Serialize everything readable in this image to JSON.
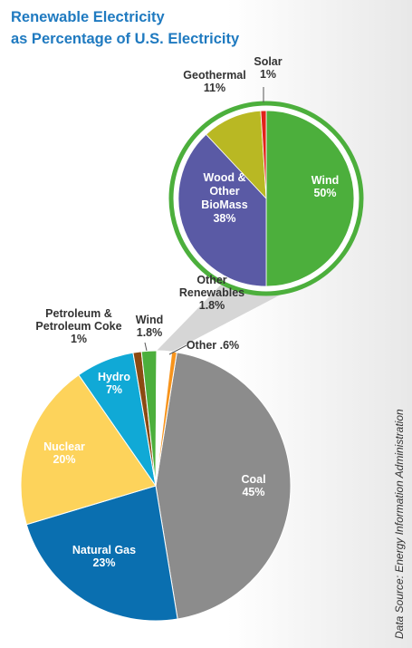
{
  "title_lines": [
    "Renewable Electricity",
    "as Percentage of U.S. Electricity"
  ],
  "source": "Data Source: Energy Information Administration",
  "colors": {
    "background": "#ffffff",
    "frame_gradient_end": "#e8e8e8",
    "title": "#1f7ac0",
    "zoom_wedge": "#d6d6d6",
    "inset_ring": "#4caf3c"
  },
  "chart_data": [
    {
      "type": "pie",
      "name": "main",
      "slices": [
        {
          "name": "Coal",
          "value": 45,
          "value_text": "45%",
          "color": "#8c8c8c",
          "label_lines": [
            "Coal",
            "45%"
          ],
          "label_color": "#ffffff"
        },
        {
          "name": "Natural Gas",
          "value": 23,
          "value_text": "23%",
          "color": "#0a6fb0",
          "label_lines": [
            "Natural Gas",
            "23%"
          ],
          "label_color": "#ffffff"
        },
        {
          "name": "Nuclear",
          "value": 20,
          "value_text": "20%",
          "color": "#fdd35b",
          "label_lines": [
            "Nuclear",
            "20%"
          ],
          "label_color": "#ffffff"
        },
        {
          "name": "Hydro",
          "value": 7,
          "value_text": "7%",
          "color": "#10a9d6",
          "label_lines": [
            "Hydro",
            "7%"
          ],
          "label_color": "#ffffff"
        },
        {
          "name": "Petroleum & Petroleum Coke",
          "value": 1,
          "value_text": "1%",
          "color": "#8b4a12",
          "label_lines": [
            "Petroleum &",
            "Petroleum Coke",
            "1%"
          ],
          "label_color": "#333333"
        },
        {
          "name": "Wind",
          "value": 1.8,
          "value_text": "1.8%",
          "color": "#4caf3c",
          "label_lines": [
            "Wind",
            "1.8%"
          ],
          "label_color": "#333333"
        },
        {
          "name": "Other Renewables",
          "value": 1.8,
          "value_text": "1.8%",
          "color": "#ffffff",
          "label_lines": [
            "Other",
            "Renewables",
            "1.8%"
          ],
          "label_color": "#333333"
        },
        {
          "name": "Other",
          "value": 0.6,
          "value_text": ".6%",
          "color": "#f7941d",
          "label_lines": [
            "Other .6%"
          ],
          "label_color": "#333333"
        }
      ]
    },
    {
      "type": "pie",
      "name": "Other Renewables breakdown",
      "slices": [
        {
          "name": "Wind",
          "value": 50,
          "value_text": "50%",
          "color": "#4caf3c",
          "label_lines": [
            "Wind",
            "50%"
          ],
          "label_color": "#ffffff"
        },
        {
          "name": "Wood & Other BioMass",
          "value": 38,
          "value_text": "38%",
          "color": "#5a5aa5",
          "label_lines": [
            "Wood &",
            "Other",
            "BioMass",
            "38%"
          ],
          "label_color": "#ffffff"
        },
        {
          "name": "Geothermal",
          "value": 11,
          "value_text": "11%",
          "color": "#b9b823",
          "label_lines": [
            "Geothermal",
            "11%"
          ],
          "label_color": "#333333"
        },
        {
          "name": "Solar",
          "value": 1,
          "value_text": "1%",
          "color": "#e2231a",
          "label_lines": [
            "Solar",
            "1%"
          ],
          "label_color": "#333333"
        }
      ]
    }
  ]
}
